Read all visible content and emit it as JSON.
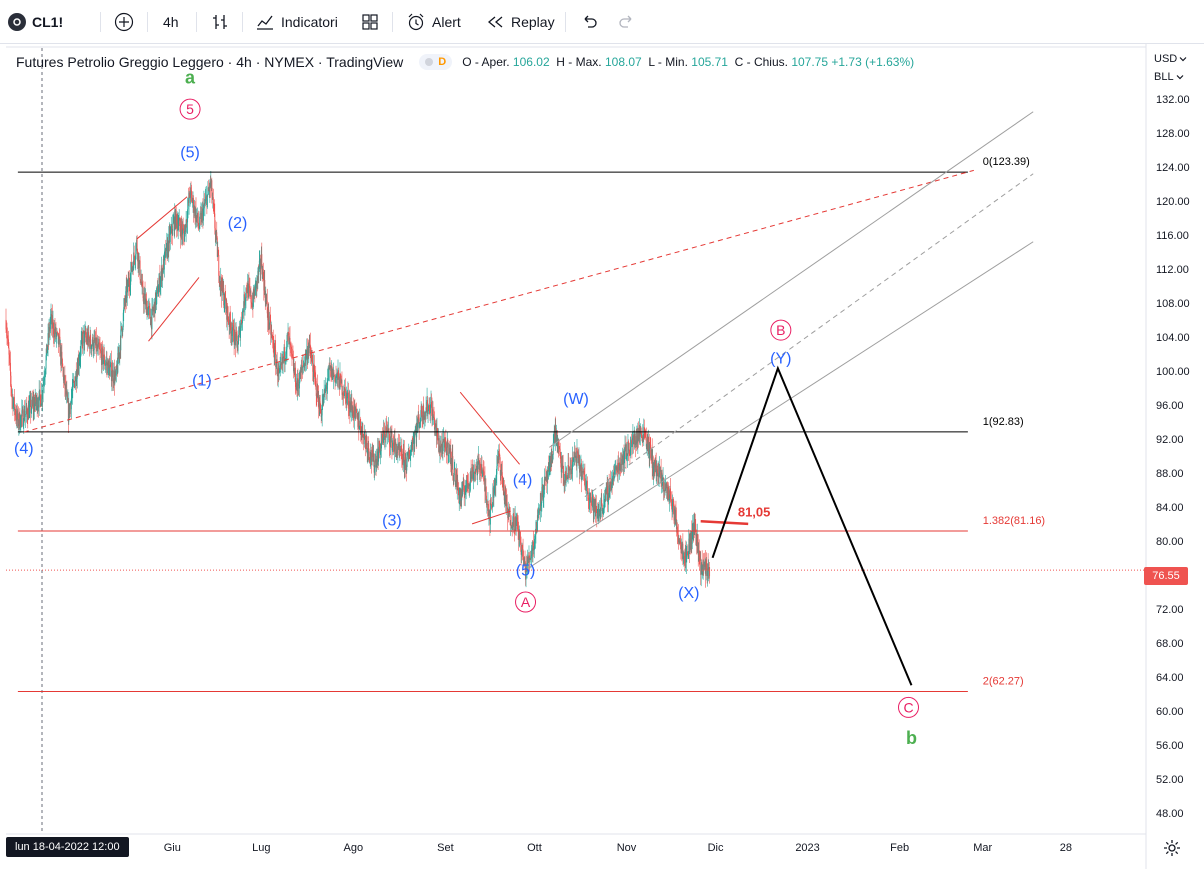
{
  "toolbar": {
    "symbol": "CL1!",
    "interval": "4h",
    "indicators_label": "Indicatori",
    "alert_label": "Alert",
    "replay_label": "Replay",
    "icons": [
      "plus-circle-icon",
      "bar-style-icon",
      "indicators-icon",
      "templates-icon",
      "alert-icon",
      "replay-icon",
      "undo-icon",
      "redo-icon"
    ]
  },
  "legend": {
    "title": "Futures Petrolio Greggio Leggero · 4h · NYMEX · TradingView",
    "status_badge": "D",
    "o_label": "O - Aper.",
    "o_value": "106.02",
    "h_label": "H - Max.",
    "h_value": "108.07",
    "l_label": "L - Min.",
    "l_value": "105.71",
    "c_label": "C - Chius.",
    "c_value": "107.75",
    "change": "+1.73",
    "change_pct": "(+1.63%)"
  },
  "right_axis": {
    "currency": "USD",
    "unit": "BLL"
  },
  "crosshair_date": "lun 18-04-2022   12:00",
  "last_price": "76.55",
  "colors": {
    "up": "#26a69a",
    "down": "#ef5350",
    "wave_blue": "#2962ff",
    "wave_pink": "#e91e63",
    "wave_green": "#4caf50",
    "fib_red": "#e53935",
    "channel_gray": "#9e9e9e",
    "forecast": "#000000"
  },
  "chart_data": {
    "type": "candlestick",
    "y_ticks": [
      48,
      52,
      56,
      60,
      64,
      68,
      72,
      76,
      80,
      84,
      88,
      92,
      96,
      100,
      104,
      108,
      112,
      116,
      120,
      124,
      128,
      132
    ],
    "y_tick_labels": [
      "48.00",
      "52.00",
      "56.00",
      "60.00",
      "64.00",
      "68.00",
      "72.00",
      "76.00",
      "80.00",
      "84.00",
      "88.00",
      "92.00",
      "96.00",
      "100.00",
      "104.00",
      "108.00",
      "112.00",
      "116.00",
      "120.00",
      "124.00",
      "128.00",
      "132.00"
    ],
    "ylim": [
      45.5,
      138
    ],
    "x_ticks": [
      {
        "label": "Giu",
        "day": 44
      },
      {
        "label": "Lug",
        "day": 74
      },
      {
        "label": "Ago",
        "day": 105
      },
      {
        "label": "Set",
        "day": 136
      },
      {
        "label": "Ott",
        "day": 166
      },
      {
        "label": "Nov",
        "day": 197
      },
      {
        "label": "Dic",
        "day": 227
      },
      {
        "label": "2023",
        "day": 258
      },
      {
        "label": "Feb",
        "day": 289
      },
      {
        "label": "Mar",
        "day": 317
      },
      {
        "label": "28",
        "day": 345
      }
    ],
    "xlim": [
      -12,
      372
    ],
    "price_path": [
      [
        -12,
        106
      ],
      [
        -10,
        97
      ],
      [
        -8,
        94
      ],
      [
        0,
        97
      ],
      [
        3,
        106
      ],
      [
        6,
        103
      ],
      [
        9,
        95
      ],
      [
        14,
        104
      ],
      [
        18,
        103
      ],
      [
        25,
        99
      ],
      [
        28,
        108
      ],
      [
        32,
        115
      ],
      [
        34,
        109
      ],
      [
        37,
        106
      ],
      [
        42,
        114
      ],
      [
        45,
        118
      ],
      [
        48,
        116
      ],
      [
        50,
        121
      ],
      [
        53,
        117
      ],
      [
        57,
        122
      ],
      [
        60,
        111
      ],
      [
        63,
        106
      ],
      [
        66,
        103
      ],
      [
        69,
        110
      ],
      [
        71,
        108
      ],
      [
        74,
        113
      ],
      [
        76,
        107
      ],
      [
        78,
        103
      ],
      [
        80,
        99
      ],
      [
        83,
        104
      ],
      [
        86,
        98
      ],
      [
        90,
        103
      ],
      [
        94,
        95
      ],
      [
        97,
        100
      ],
      [
        100,
        99
      ],
      [
        104,
        96
      ],
      [
        108,
        93
      ],
      [
        112,
        89
      ],
      [
        116,
        93
      ],
      [
        119,
        91
      ],
      [
        123,
        89
      ],
      [
        126,
        93
      ],
      [
        128,
        95
      ],
      [
        131,
        96
      ],
      [
        134,
        91
      ],
      [
        137,
        91
      ],
      [
        141,
        85
      ],
      [
        145,
        88
      ],
      [
        148,
        89
      ],
      [
        151,
        83
      ],
      [
        154,
        90
      ],
      [
        157,
        83
      ],
      [
        160,
        82
      ],
      [
        163,
        76.5
      ],
      [
        166,
        80
      ],
      [
        168,
        85
      ],
      [
        171,
        88
      ],
      [
        173,
        93
      ],
      [
        176,
        87
      ],
      [
        180,
        90
      ],
      [
        183,
        87
      ],
      [
        187,
        83
      ],
      [
        190,
        85
      ],
      [
        193,
        88
      ],
      [
        196,
        90
      ],
      [
        200,
        92
      ],
      [
        203,
        93
      ],
      [
        206,
        89
      ],
      [
        209,
        87
      ],
      [
        212,
        85
      ],
      [
        215,
        80
      ],
      [
        217,
        78
      ],
      [
        220,
        82
      ],
      [
        222,
        77
      ],
      [
        225,
        76.6
      ]
    ],
    "volatility": 1.6,
    "horizontal_lines": [
      {
        "y": 123.39,
        "label": "0(123.39)",
        "color": "#000000"
      },
      {
        "y": 92.83,
        "label": "1(92.83)",
        "color": "#000000"
      },
      {
        "y": 81.16,
        "label": "1.382(81.16)",
        "color": "#e53935"
      },
      {
        "y": 62.27,
        "label": "2(62.27)",
        "color": "#e53935"
      }
    ],
    "last_price_line": {
      "y": 76.55,
      "color": "#ef5350"
    },
    "annotations": [
      {
        "text": "a",
        "day": 50,
        "y": 134.5,
        "color": "#4caf50",
        "style": "plain"
      },
      {
        "text": "5",
        "day": 50,
        "y": 130.8,
        "color": "#e91e63",
        "style": "circle"
      },
      {
        "text": "(5)",
        "day": 50,
        "y": 125.8,
        "color": "#2962ff",
        "style": "plain"
      },
      {
        "text": "(2)",
        "day": 66,
        "y": 117.5,
        "color": "#2962ff",
        "style": "plain"
      },
      {
        "text": "(1)",
        "day": 54,
        "y": 99.0,
        "color": "#2962ff",
        "style": "plain"
      },
      {
        "text": "(4)",
        "day": -6,
        "y": 91.0,
        "color": "#2962ff",
        "style": "plain"
      },
      {
        "text": "(3)",
        "day": 118,
        "y": 82.5,
        "color": "#2962ff",
        "style": "plain"
      },
      {
        "text": "(4)",
        "day": 162,
        "y": 87.3,
        "color": "#2962ff",
        "style": "plain"
      },
      {
        "text": "(5)",
        "day": 163,
        "y": 76.6,
        "color": "#2962ff",
        "style": "plain"
      },
      {
        "text": "A",
        "day": 163,
        "y": 72.8,
        "color": "#e91e63",
        "style": "circle"
      },
      {
        "text": "(W)",
        "day": 180,
        "y": 96.8,
        "color": "#2962ff",
        "style": "plain"
      },
      {
        "text": "(X)",
        "day": 218,
        "y": 74.0,
        "color": "#2962ff",
        "style": "plain"
      },
      {
        "text": "B",
        "day": 249,
        "y": 104.8,
        "color": "#e91e63",
        "style": "circle"
      },
      {
        "text": "(Y)",
        "day": 249,
        "y": 101.6,
        "color": "#2962ff",
        "style": "plain"
      },
      {
        "text": "C",
        "day": 292,
        "y": 60.4,
        "color": "#e91e63",
        "style": "circle"
      },
      {
        "text": "b",
        "day": 293,
        "y": 56.8,
        "color": "#4caf50",
        "style": "plain"
      },
      {
        "text": "81,05",
        "day": 240,
        "y": 83.6,
        "color": "#e53935",
        "style": "plain"
      }
    ],
    "dashed_lines": [
      {
        "from": [
          -6,
          92.8
        ],
        "to": [
          314,
          123.6
        ],
        "color": "#e53935"
      },
      {
        "from": [
          183,
          85.2
        ],
        "to": [
          334,
          123.2
        ],
        "color": "#9e9e9e"
      }
    ],
    "solid_lines": [
      {
        "from": [
          164,
          76.8
        ],
        "to": [
          334,
          115.2
        ],
        "color": "#9e9e9e"
      },
      {
        "from": [
          171,
          91.0
        ],
        "to": [
          334,
          130.5
        ],
        "color": "#9e9e9e"
      },
      {
        "from": [
          32,
          115.5
        ],
        "to": [
          49,
          120.5
        ],
        "color": "#e53935"
      },
      {
        "from": [
          36,
          103.5
        ],
        "to": [
          53,
          111.0
        ],
        "color": "#e53935"
      },
      {
        "from": [
          141,
          97.5
        ],
        "to": [
          161,
          89.0
        ],
        "color": "#e53935"
      },
      {
        "from": [
          145,
          82.0
        ],
        "to": [
          158,
          83.5
        ],
        "color": "#e53935"
      },
      {
        "from": [
          222,
          82.3
        ],
        "to": [
          238,
          82.0
        ],
        "color": "#e53935"
      }
    ],
    "forecast_path": [
      [
        226,
        78.0
      ],
      [
        248,
        100.3
      ],
      [
        293,
        63.0
      ]
    ]
  }
}
